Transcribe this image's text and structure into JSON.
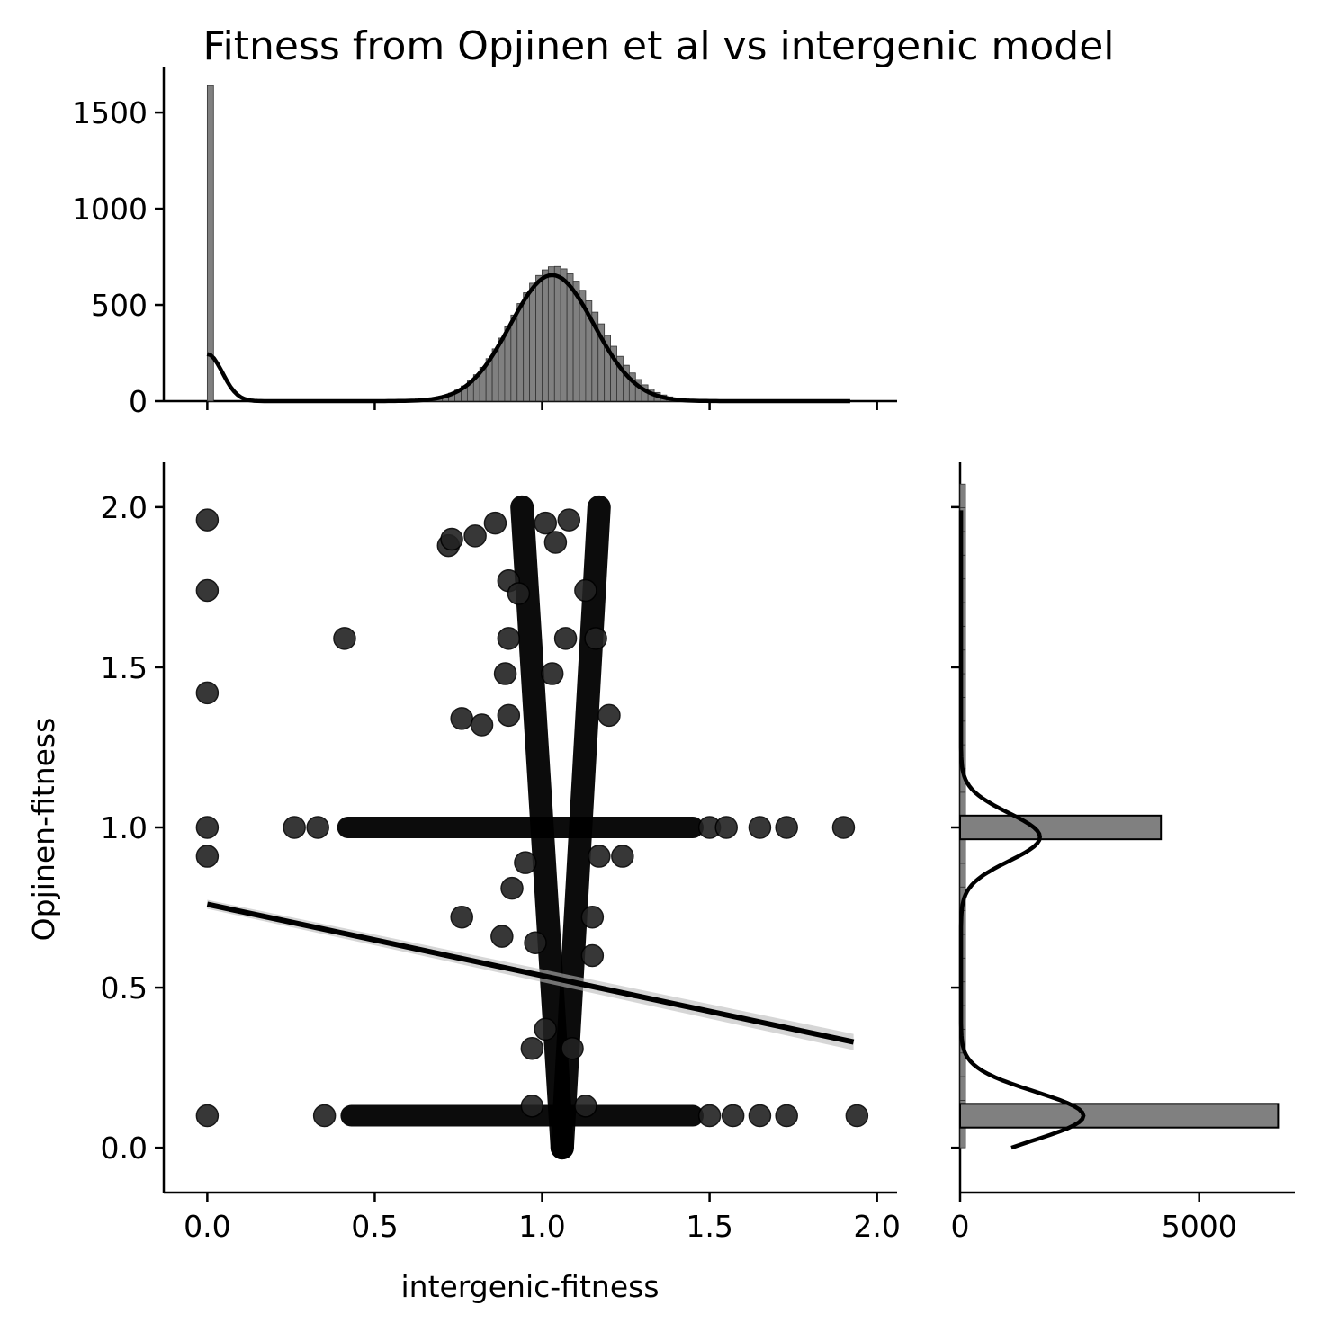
{
  "chart_data": {
    "type": "scatter",
    "title": "Fitness from Opjinen et al vs intergenic model",
    "xlabel": "intergenic-fitness",
    "ylabel": "Opjinen-fitness",
    "xlim": [
      -0.13,
      2.06
    ],
    "ylim": [
      -0.14,
      2.14
    ],
    "x_ticks": [
      "0.0",
      "0.5",
      "1.0",
      "1.5",
      "2.0"
    ],
    "y_ticks": [
      "0.0",
      "0.5",
      "1.0",
      "1.5",
      "2.0"
    ],
    "marginal_x": {
      "type": "histogram",
      "ylim": [
        0,
        1650
      ],
      "y_ticks": [
        "0",
        "500",
        "1000",
        "1500"
      ],
      "spike": {
        "x": 0.01,
        "count": 1640
      },
      "kde_peak": {
        "x": 1.03,
        "count": 655
      },
      "kde_left": {
        "x": 0.0,
        "count": 245
      }
    },
    "marginal_y": {
      "type": "histogram",
      "xlim": [
        0,
        7000
      ],
      "x_ticks": [
        "0",
        "5000"
      ],
      "bins": [
        {
          "y": 0.1,
          "count": 6650
        },
        {
          "y": 1.0,
          "count": 4200
        }
      ],
      "kde_peaks": [
        {
          "y": 0.1,
          "count": 2560
        },
        {
          "y": 0.97,
          "count": 1650
        }
      ]
    },
    "regression": {
      "x": [
        0.0,
        1.93
      ],
      "y": [
        0.76,
        0.33
      ]
    },
    "scatter_points": [
      {
        "x": 0.0,
        "y": 1.96
      },
      {
        "x": 0.0,
        "y": 1.74
      },
      {
        "x": 0.0,
        "y": 1.42
      },
      {
        "x": 0.0,
        "y": 1.0
      },
      {
        "x": 0.0,
        "y": 0.91
      },
      {
        "x": 0.0,
        "y": 0.1
      },
      {
        "x": 0.26,
        "y": 1.0
      },
      {
        "x": 0.33,
        "y": 1.0
      },
      {
        "x": 0.41,
        "y": 1.59
      },
      {
        "x": 0.35,
        "y": 0.1
      },
      {
        "x": 0.72,
        "y": 1.88
      },
      {
        "x": 0.73,
        "y": 1.9
      },
      {
        "x": 0.8,
        "y": 1.91
      },
      {
        "x": 0.86,
        "y": 1.95
      },
      {
        "x": 0.9,
        "y": 1.77
      },
      {
        "x": 0.93,
        "y": 1.73
      },
      {
        "x": 0.9,
        "y": 1.59
      },
      {
        "x": 0.89,
        "y": 1.48
      },
      {
        "x": 0.9,
        "y": 1.35
      },
      {
        "x": 0.76,
        "y": 1.34
      },
      {
        "x": 0.82,
        "y": 1.32
      },
      {
        "x": 0.76,
        "y": 0.72
      },
      {
        "x": 0.88,
        "y": 0.66
      },
      {
        "x": 0.91,
        "y": 0.81
      },
      {
        "x": 0.95,
        "y": 0.89
      },
      {
        "x": 1.01,
        "y": 1.95
      },
      {
        "x": 1.04,
        "y": 1.89
      },
      {
        "x": 1.08,
        "y": 1.96
      },
      {
        "x": 1.03,
        "y": 1.48
      },
      {
        "x": 1.07,
        "y": 1.59
      },
      {
        "x": 1.13,
        "y": 1.74
      },
      {
        "x": 1.16,
        "y": 1.59
      },
      {
        "x": 1.2,
        "y": 1.35
      },
      {
        "x": 1.17,
        "y": 0.91
      },
      {
        "x": 1.24,
        "y": 0.91
      },
      {
        "x": 1.15,
        "y": 0.72
      },
      {
        "x": 1.15,
        "y": 0.6
      },
      {
        "x": 0.98,
        "y": 0.64
      },
      {
        "x": 0.97,
        "y": 0.31
      },
      {
        "x": 1.01,
        "y": 0.37
      },
      {
        "x": 1.09,
        "y": 0.31
      },
      {
        "x": 0.97,
        "y": 0.13
      },
      {
        "x": 1.13,
        "y": 0.13
      },
      {
        "x": 1.5,
        "y": 1.0
      },
      {
        "x": 1.55,
        "y": 1.0
      },
      {
        "x": 1.65,
        "y": 1.0
      },
      {
        "x": 1.73,
        "y": 1.0
      },
      {
        "x": 1.9,
        "y": 1.0
      },
      {
        "x": 1.5,
        "y": 0.1
      },
      {
        "x": 1.57,
        "y": 0.1
      },
      {
        "x": 1.65,
        "y": 0.1
      },
      {
        "x": 1.73,
        "y": 0.1
      },
      {
        "x": 1.94,
        "y": 0.1
      }
    ],
    "dense_bands": [
      {
        "x": [
          0.42,
          1.45
        ],
        "y": [
          1.0,
          1.0
        ]
      },
      {
        "x": [
          0.43,
          1.45
        ],
        "y": [
          0.1,
          0.1
        ]
      },
      {
        "x": [
          0.94,
          1.06
        ],
        "y": [
          2.0,
          0.0
        ]
      },
      {
        "x": [
          1.17,
          1.06
        ],
        "y": [
          2.0,
          0.0
        ]
      }
    ]
  }
}
